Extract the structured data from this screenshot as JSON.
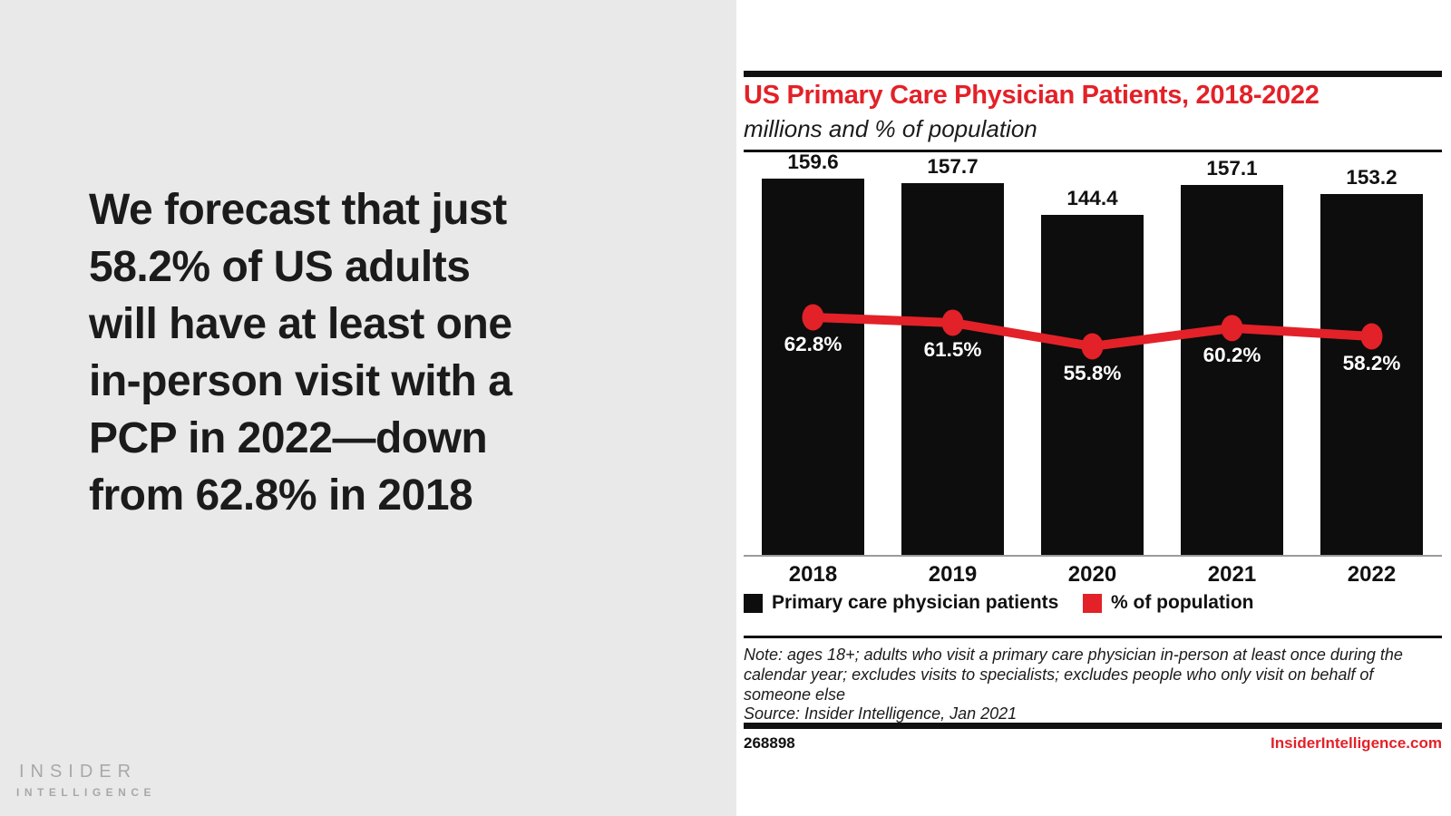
{
  "left_panel": {
    "headline": "We forecast that just\n58.2% of US adults\nwill have at least one\nin-person visit with a\nPCP in 2022—down\nfrom 62.8% in 2018",
    "logo": {
      "line1": "INSIDER",
      "line2": "INTELLIGENCE"
    }
  },
  "chart_data": {
    "type": "bar",
    "title": "US Primary Care Physician Patients, 2018-2022",
    "subtitle": "millions and % of population",
    "categories": [
      "2018",
      "2019",
      "2020",
      "2021",
      "2022"
    ],
    "series": [
      {
        "name": "Primary care physician patients",
        "type": "bar",
        "unit": "millions",
        "values": [
          159.6,
          157.7,
          144.4,
          157.1,
          153.2
        ],
        "labels": [
          "159.6",
          "157.7",
          "144.4",
          "157.1",
          "153.2"
        ],
        "color": "#0d0d0d"
      },
      {
        "name": "% of population",
        "type": "line",
        "unit": "% of population",
        "values": [
          62.8,
          61.5,
          55.8,
          60.2,
          58.2
        ],
        "labels": [
          "62.8%",
          "61.5%",
          "55.8%",
          "60.2%",
          "58.2%"
        ],
        "color": "#e32128"
      }
    ],
    "legend": [
      {
        "label": "Primary care physician patients",
        "color": "#0d0d0d"
      },
      {
        "label": "% of population",
        "color": "#e32128"
      }
    ],
    "axes": {
      "y_axis_visible": false,
      "gridlines": false,
      "value_labels_shown": true
    }
  },
  "note": {
    "text": "Note: ages 18+; adults who visit a primary care physician in-person at least once during the\ncalendar year; excludes visits to specialists; excludes people who only visit on behalf of\nsomeone else",
    "source": "Source: Insider Intelligence, Jan 2021"
  },
  "footer": {
    "chart_id": "268898",
    "website": "InsiderIntelligence.com"
  },
  "colors": {
    "accent_red": "#e32128",
    "bar_black": "#0d0d0d",
    "panel_gray": "#e9e9e9",
    "logo_gray": "#a8a8ab",
    "axis_gray": "#9b9b9b"
  }
}
